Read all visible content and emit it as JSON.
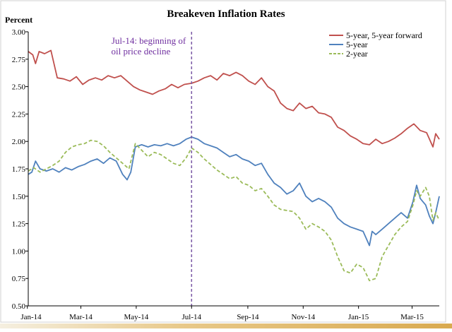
{
  "chart_data": {
    "type": "line",
    "title": "Breakeven Inflation Rates",
    "ylabel": "Percent",
    "ylim": [
      0.5,
      3.0
    ],
    "yticks": [
      "0.50",
      "0.75",
      "1.00",
      "1.25",
      "1.50",
      "1.75",
      "2.00",
      "2.25",
      "2.50",
      "2.75",
      "3.00"
    ],
    "x_range": [
      "2014-01-02",
      "2015-03-31"
    ],
    "xticks": [
      {
        "date": "2014-01-01",
        "label": "Jan-14"
      },
      {
        "date": "2014-03-01",
        "label": "Mar-14"
      },
      {
        "date": "2014-05-01",
        "label": "May-14"
      },
      {
        "date": "2014-07-01",
        "label": "Jul-14"
      },
      {
        "date": "2014-09-01",
        "label": "Sep-14"
      },
      {
        "date": "2014-11-01",
        "label": "Nov-14"
      },
      {
        "date": "2015-01-01",
        "label": "Jan-15"
      },
      {
        "date": "2015-03-01",
        "label": "Mar-15"
      }
    ],
    "legend_position": "top-right",
    "annotation": {
      "date": "2014-07-01",
      "line1": "Jul-14: beginning of",
      "line2": "oil price decline"
    },
    "series": [
      {
        "name": "5-year, 5-year forward",
        "color": "#c0504d",
        "dash": "solid",
        "points": [
          [
            "2014-01-02",
            2.82
          ],
          [
            "2014-01-07",
            2.79
          ],
          [
            "2014-01-10",
            2.71
          ],
          [
            "2014-01-14",
            2.82
          ],
          [
            "2014-01-20",
            2.8
          ],
          [
            "2014-01-27",
            2.83
          ],
          [
            "2014-02-03",
            2.58
          ],
          [
            "2014-02-10",
            2.57
          ],
          [
            "2014-02-17",
            2.55
          ],
          [
            "2014-02-24",
            2.59
          ],
          [
            "2014-03-03",
            2.52
          ],
          [
            "2014-03-10",
            2.56
          ],
          [
            "2014-03-17",
            2.58
          ],
          [
            "2014-03-24",
            2.56
          ],
          [
            "2014-03-31",
            2.6
          ],
          [
            "2014-04-07",
            2.58
          ],
          [
            "2014-04-14",
            2.6
          ],
          [
            "2014-04-21",
            2.55
          ],
          [
            "2014-04-28",
            2.5
          ],
          [
            "2014-05-05",
            2.47
          ],
          [
            "2014-05-12",
            2.45
          ],
          [
            "2014-05-19",
            2.43
          ],
          [
            "2014-05-26",
            2.46
          ],
          [
            "2014-06-02",
            2.48
          ],
          [
            "2014-06-09",
            2.52
          ],
          [
            "2014-06-16",
            2.49
          ],
          [
            "2014-06-23",
            2.52
          ],
          [
            "2014-07-01",
            2.53
          ],
          [
            "2014-07-08",
            2.55
          ],
          [
            "2014-07-15",
            2.58
          ],
          [
            "2014-07-22",
            2.6
          ],
          [
            "2014-07-29",
            2.56
          ],
          [
            "2014-08-05",
            2.62
          ],
          [
            "2014-08-12",
            2.6
          ],
          [
            "2014-08-19",
            2.63
          ],
          [
            "2014-08-26",
            2.6
          ],
          [
            "2014-09-02",
            2.55
          ],
          [
            "2014-09-09",
            2.52
          ],
          [
            "2014-09-16",
            2.58
          ],
          [
            "2014-09-23",
            2.5
          ],
          [
            "2014-09-30",
            2.46
          ],
          [
            "2014-10-07",
            2.35
          ],
          [
            "2014-10-14",
            2.3
          ],
          [
            "2014-10-21",
            2.28
          ],
          [
            "2014-10-28",
            2.35
          ],
          [
            "2014-11-04",
            2.3
          ],
          [
            "2014-11-11",
            2.32
          ],
          [
            "2014-11-18",
            2.26
          ],
          [
            "2014-11-25",
            2.25
          ],
          [
            "2014-12-02",
            2.22
          ],
          [
            "2014-12-09",
            2.13
          ],
          [
            "2014-12-16",
            2.1
          ],
          [
            "2014-12-23",
            2.05
          ],
          [
            "2014-12-30",
            2.02
          ],
          [
            "2015-01-06",
            1.98
          ],
          [
            "2015-01-13",
            1.97
          ],
          [
            "2015-01-20",
            2.02
          ],
          [
            "2015-01-27",
            1.98
          ],
          [
            "2015-02-03",
            2.0
          ],
          [
            "2015-02-10",
            2.03
          ],
          [
            "2015-02-17",
            2.07
          ],
          [
            "2015-02-24",
            2.12
          ],
          [
            "2015-03-03",
            2.16
          ],
          [
            "2015-03-10",
            2.1
          ],
          [
            "2015-03-17",
            2.08
          ],
          [
            "2015-03-24",
            1.95
          ],
          [
            "2015-03-27",
            2.07
          ],
          [
            "2015-03-31",
            2.02
          ]
        ]
      },
      {
        "name": "5-year",
        "color": "#4f81bd",
        "dash": "solid",
        "points": [
          [
            "2014-01-02",
            1.7
          ],
          [
            "2014-01-06",
            1.72
          ],
          [
            "2014-01-10",
            1.82
          ],
          [
            "2014-01-15",
            1.75
          ],
          [
            "2014-01-22",
            1.73
          ],
          [
            "2014-01-29",
            1.75
          ],
          [
            "2014-02-05",
            1.72
          ],
          [
            "2014-02-12",
            1.76
          ],
          [
            "2014-02-19",
            1.74
          ],
          [
            "2014-02-26",
            1.77
          ],
          [
            "2014-03-05",
            1.79
          ],
          [
            "2014-03-12",
            1.82
          ],
          [
            "2014-03-19",
            1.84
          ],
          [
            "2014-03-26",
            1.8
          ],
          [
            "2014-04-02",
            1.85
          ],
          [
            "2014-04-09",
            1.82
          ],
          [
            "2014-04-16",
            1.7
          ],
          [
            "2014-04-21",
            1.65
          ],
          [
            "2014-04-25",
            1.72
          ],
          [
            "2014-04-30",
            1.95
          ],
          [
            "2014-05-07",
            1.97
          ],
          [
            "2014-05-14",
            1.95
          ],
          [
            "2014-05-21",
            1.97
          ],
          [
            "2014-05-28",
            1.96
          ],
          [
            "2014-06-04",
            1.98
          ],
          [
            "2014-06-11",
            1.96
          ],
          [
            "2014-06-18",
            1.98
          ],
          [
            "2014-06-25",
            2.02
          ],
          [
            "2014-07-01",
            2.04
          ],
          [
            "2014-07-08",
            2.02
          ],
          [
            "2014-07-15",
            1.98
          ],
          [
            "2014-07-22",
            1.96
          ],
          [
            "2014-07-29",
            1.94
          ],
          [
            "2014-08-05",
            1.9
          ],
          [
            "2014-08-12",
            1.86
          ],
          [
            "2014-08-19",
            1.88
          ],
          [
            "2014-08-26",
            1.84
          ],
          [
            "2014-09-02",
            1.82
          ],
          [
            "2014-09-09",
            1.78
          ],
          [
            "2014-09-16",
            1.8
          ],
          [
            "2014-09-23",
            1.7
          ],
          [
            "2014-09-30",
            1.62
          ],
          [
            "2014-10-07",
            1.58
          ],
          [
            "2014-10-14",
            1.52
          ],
          [
            "2014-10-21",
            1.55
          ],
          [
            "2014-10-28",
            1.62
          ],
          [
            "2014-11-04",
            1.5
          ],
          [
            "2014-11-11",
            1.45
          ],
          [
            "2014-11-18",
            1.48
          ],
          [
            "2014-11-25",
            1.45
          ],
          [
            "2014-12-02",
            1.4
          ],
          [
            "2014-12-09",
            1.3
          ],
          [
            "2014-12-16",
            1.25
          ],
          [
            "2014-12-23",
            1.22
          ],
          [
            "2014-12-30",
            1.2
          ],
          [
            "2015-01-06",
            1.18
          ],
          [
            "2015-01-13",
            1.05
          ],
          [
            "2015-01-16",
            1.18
          ],
          [
            "2015-01-20",
            1.15
          ],
          [
            "2015-01-27",
            1.2
          ],
          [
            "2015-02-03",
            1.25
          ],
          [
            "2015-02-10",
            1.3
          ],
          [
            "2015-02-17",
            1.35
          ],
          [
            "2015-02-24",
            1.3
          ],
          [
            "2015-03-02",
            1.45
          ],
          [
            "2015-03-06",
            1.6
          ],
          [
            "2015-03-10",
            1.48
          ],
          [
            "2015-03-16",
            1.42
          ],
          [
            "2015-03-20",
            1.32
          ],
          [
            "2015-03-24",
            1.25
          ],
          [
            "2015-03-27",
            1.35
          ],
          [
            "2015-03-31",
            1.5
          ]
        ]
      },
      {
        "name": "2-year",
        "color": "#9bbb59",
        "dash": "dashed",
        "points": [
          [
            "2014-01-02",
            1.73
          ],
          [
            "2014-01-08",
            1.76
          ],
          [
            "2014-01-15",
            1.72
          ],
          [
            "2014-01-22",
            1.75
          ],
          [
            "2014-01-29",
            1.78
          ],
          [
            "2014-02-05",
            1.82
          ],
          [
            "2014-02-12",
            1.9
          ],
          [
            "2014-02-19",
            1.95
          ],
          [
            "2014-02-26",
            1.97
          ],
          [
            "2014-03-05",
            1.98
          ],
          [
            "2014-03-12",
            2.01
          ],
          [
            "2014-03-19",
            2.0
          ],
          [
            "2014-03-26",
            1.96
          ],
          [
            "2014-04-02",
            1.9
          ],
          [
            "2014-04-09",
            1.85
          ],
          [
            "2014-04-16",
            1.8
          ],
          [
            "2014-04-23",
            1.75
          ],
          [
            "2014-04-30",
            1.98
          ],
          [
            "2014-05-07",
            1.92
          ],
          [
            "2014-05-14",
            1.86
          ],
          [
            "2014-05-21",
            1.9
          ],
          [
            "2014-05-28",
            1.88
          ],
          [
            "2014-06-04",
            1.84
          ],
          [
            "2014-06-11",
            1.8
          ],
          [
            "2014-06-18",
            1.78
          ],
          [
            "2014-06-25",
            1.85
          ],
          [
            "2014-07-01",
            1.94
          ],
          [
            "2014-07-08",
            1.9
          ],
          [
            "2014-07-15",
            1.84
          ],
          [
            "2014-07-22",
            1.79
          ],
          [
            "2014-07-29",
            1.74
          ],
          [
            "2014-08-05",
            1.7
          ],
          [
            "2014-08-12",
            1.66
          ],
          [
            "2014-08-19",
            1.68
          ],
          [
            "2014-08-26",
            1.62
          ],
          [
            "2014-09-02",
            1.6
          ],
          [
            "2014-09-09",
            1.55
          ],
          [
            "2014-09-16",
            1.57
          ],
          [
            "2014-09-23",
            1.5
          ],
          [
            "2014-09-30",
            1.42
          ],
          [
            "2014-10-07",
            1.38
          ],
          [
            "2014-10-14",
            1.37
          ],
          [
            "2014-10-21",
            1.36
          ],
          [
            "2014-10-28",
            1.3
          ],
          [
            "2014-11-04",
            1.2
          ],
          [
            "2014-11-11",
            1.25
          ],
          [
            "2014-11-18",
            1.22
          ],
          [
            "2014-11-25",
            1.18
          ],
          [
            "2014-12-02",
            1.1
          ],
          [
            "2014-12-09",
            0.95
          ],
          [
            "2014-12-16",
            0.82
          ],
          [
            "2014-12-23",
            0.8
          ],
          [
            "2014-12-30",
            0.88
          ],
          [
            "2015-01-06",
            0.85
          ],
          [
            "2015-01-13",
            0.73
          ],
          [
            "2015-01-20",
            0.75
          ],
          [
            "2015-01-27",
            0.95
          ],
          [
            "2015-02-03",
            1.05
          ],
          [
            "2015-02-10",
            1.15
          ],
          [
            "2015-02-17",
            1.22
          ],
          [
            "2015-02-24",
            1.27
          ],
          [
            "2015-03-02",
            1.42
          ],
          [
            "2015-03-06",
            1.55
          ],
          [
            "2015-03-10",
            1.5
          ],
          [
            "2015-03-16",
            1.58
          ],
          [
            "2015-03-20",
            1.5
          ],
          [
            "2015-03-24",
            1.28
          ],
          [
            "2015-03-27",
            1.35
          ],
          [
            "2015-03-31",
            1.28
          ]
        ]
      }
    ]
  }
}
